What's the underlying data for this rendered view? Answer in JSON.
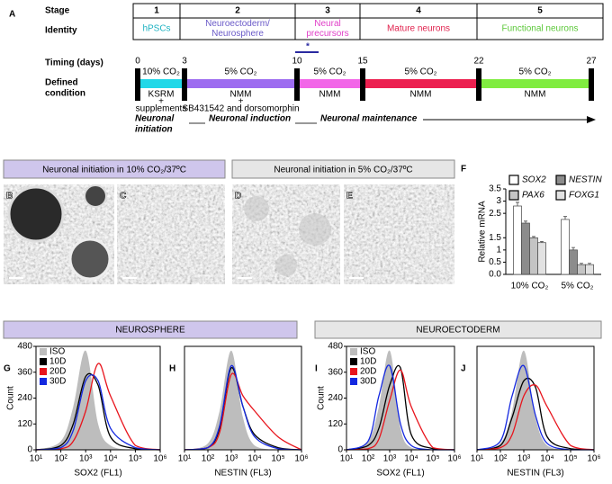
{
  "panel_a": {
    "letter": "A",
    "stage_label": "Stage",
    "identity_label": "Identity",
    "timing_label": "Timing (days)",
    "condition_label": [
      "Defined",
      "condition"
    ],
    "star": "*",
    "stages": [
      {
        "number": "1",
        "identity": [
          "hPSCs"
        ],
        "color": "#1fb3c2"
      },
      {
        "number": "2",
        "identity": [
          "Neuroectoderm/",
          "Neurosphere"
        ],
        "color": "#6a5ac8"
      },
      {
        "number": "3",
        "identity": [
          "Neural",
          "precursors"
        ],
        "color": "#e040c8"
      },
      {
        "number": "4",
        "identity": [
          "Mature neurons"
        ],
        "color": "#e0204c"
      },
      {
        "number": "5",
        "identity": [
          "Functional neurons"
        ],
        "color": "#5cc83a"
      }
    ],
    "days": [
      0,
      3,
      10,
      15,
      22,
      27
    ],
    "conditions": [
      {
        "co2": "10% CO₂",
        "medium": [
          "KSRM",
          "+",
          "supplements"
        ],
        "color": "#22d8e8"
      },
      {
        "co2": "5% CO₂",
        "medium": [
          "NMM",
          "+",
          "SB431542 and dorsomorphin"
        ],
        "color": "#9d6cf0"
      },
      {
        "co2": "5% CO₂",
        "medium": [
          "NMM"
        ],
        "color": "#f266e8"
      },
      {
        "co2": "5% CO₂",
        "medium": [
          "NMM"
        ],
        "color": "#ec2050"
      },
      {
        "co2": "5% CO₂",
        "medium": [
          "NMM"
        ],
        "color": "#80ec40"
      }
    ],
    "phases": [
      [
        "Neuronal",
        "initiation"
      ],
      [
        "Neuronal induction"
      ],
      [
        "Neuronal maintenance"
      ]
    ]
  },
  "micrographs": {
    "headers": [
      "Neuronal initiation in 10% CO₂/37ºC",
      "Neuronal initiation in 5% CO₂/37ºC"
    ],
    "letters": [
      "B",
      "C",
      "D",
      "E"
    ]
  },
  "flow_cytometry": {
    "headers": [
      "NEUROSPHERE",
      "NEUROECTODERM"
    ]
  },
  "chart_data": [
    {
      "type": "bar",
      "label": "F",
      "ylabel": "Relative mRNA",
      "categories": [
        "10% CO₂",
        "5% CO₂"
      ],
      "ylim": [
        0,
        3.5
      ],
      "yticks": [
        {
          "value": 0,
          "label": "0.0"
        },
        0.5,
        1,
        1.5,
        2.5,
        3,
        3.5
      ],
      "series": [
        {
          "name": "SOX2",
          "color": "#ffffff",
          "values": [
            2.8,
            2.25
          ],
          "errors": [
            0.15,
            0.12
          ]
        },
        {
          "name": "NESTIN",
          "color": "#8c8c8c",
          "values": [
            2.1,
            1.0
          ],
          "errors": [
            0.08,
            0.1
          ]
        },
        {
          "name": "PAX6",
          "color": "#c4c4c4",
          "values": [
            1.5,
            0.4
          ],
          "errors": [
            0.05,
            0.05
          ]
        },
        {
          "name": "FOXG1",
          "color": "#e2e2e2",
          "values": [
            1.3,
            0.4
          ],
          "errors": [
            0.05,
            0.05
          ]
        }
      ]
    },
    {
      "type": "line",
      "label": "G",
      "xlabel": "SOX2 (FL1)",
      "ylabel": "Count",
      "legend": true,
      "x": [
        1,
        2,
        2.5,
        3,
        3.5,
        4,
        5,
        6
      ],
      "xlim": [
        1,
        6
      ],
      "ylim": [
        0,
        480
      ],
      "xticks": [
        {
          "value": 1,
          "label": "10¹"
        },
        {
          "value": 2,
          "label": "10²"
        },
        {
          "value": 3,
          "label": "10³"
        },
        {
          "value": 4,
          "label": "10⁴"
        },
        {
          "value": 5,
          "label": "10⁵"
        },
        {
          "value": 6,
          "label": "10⁶"
        }
      ],
      "yticks": [
        0,
        120,
        240,
        360,
        480
      ],
      "series": [
        {
          "name": "ISO",
          "color": "#bdbdbd",
          "fill": true,
          "values": [
            0,
            40,
            200,
            460,
            120,
            20,
            0,
            0
          ]
        },
        {
          "name": "10D",
          "color": "#000000",
          "values": [
            0,
            20,
            120,
            340,
            300,
            60,
            5,
            0
          ]
        },
        {
          "name": "20D",
          "color": "#e8141c",
          "values": [
            0,
            5,
            40,
            180,
            400,
            250,
            20,
            0
          ]
        },
        {
          "name": "30D",
          "color": "#1428e0",
          "values": [
            0,
            10,
            90,
            320,
            320,
            100,
            10,
            0
          ]
        }
      ]
    },
    {
      "type": "line",
      "label": "H",
      "xlabel": "NESTIN (FL3)",
      "x": [
        1,
        2,
        2.5,
        3,
        3.5,
        4,
        5,
        6
      ],
      "xlim": [
        1,
        6
      ],
      "ylim": [
        0,
        480
      ],
      "xticks": [
        {
          "value": 1,
          "label": "10¹"
        },
        {
          "value": 2,
          "label": "10²"
        },
        {
          "value": 3,
          "label": "10³"
        },
        {
          "value": 4,
          "label": "10⁴"
        },
        {
          "value": 5,
          "label": "10⁵"
        },
        {
          "value": 6,
          "label": "10⁶"
        }
      ],
      "series": [
        {
          "name": "ISO",
          "color": "#bdbdbd",
          "fill": true,
          "values": [
            0,
            30,
            180,
            460,
            150,
            20,
            0,
            0
          ]
        },
        {
          "name": "10D",
          "color": "#000000",
          "values": [
            0,
            10,
            100,
            380,
            200,
            70,
            10,
            0
          ]
        },
        {
          "name": "20D",
          "color": "#e8141c",
          "values": [
            0,
            10,
            80,
            350,
            250,
            180,
            60,
            0
          ]
        },
        {
          "name": "30D",
          "color": "#1428e0",
          "values": [
            0,
            10,
            110,
            390,
            200,
            60,
            5,
            0
          ]
        }
      ]
    },
    {
      "type": "line",
      "label": "I",
      "xlabel": "SOX2 (FL1)",
      "ylabel": "Count",
      "legend": true,
      "x": [
        1,
        2,
        2.5,
        3,
        3.5,
        4,
        5,
        6
      ],
      "xlim": [
        1,
        6
      ],
      "ylim": [
        0,
        480
      ],
      "xticks": [
        {
          "value": 1,
          "label": "10¹"
        },
        {
          "value": 2,
          "label": "10²"
        },
        {
          "value": 3,
          "label": "10³"
        },
        {
          "value": 4,
          "label": "10⁴"
        },
        {
          "value": 5,
          "label": "10⁵"
        },
        {
          "value": 6,
          "label": "10⁶"
        }
      ],
      "yticks": [
        0,
        120,
        240,
        360,
        480
      ],
      "series": [
        {
          "name": "ISO",
          "color": "#bdbdbd",
          "fill": true,
          "values": [
            0,
            40,
            200,
            460,
            100,
            10,
            0,
            0
          ]
        },
        {
          "name": "10D",
          "color": "#000000",
          "values": [
            0,
            20,
            100,
            300,
            380,
            70,
            5,
            0
          ]
        },
        {
          "name": "20D",
          "color": "#e8141c",
          "values": [
            0,
            5,
            50,
            230,
            370,
            200,
            10,
            0
          ]
        },
        {
          "name": "30D",
          "color": "#1428e0",
          "values": [
            0,
            40,
            250,
            390,
            120,
            20,
            0,
            0
          ]
        }
      ]
    },
    {
      "type": "line",
      "label": "J",
      "xlabel": "NESTIN (FL3)",
      "x": [
        1,
        2,
        2.5,
        3,
        3.5,
        4,
        5,
        6
      ],
      "xlim": [
        1,
        6
      ],
      "ylim": [
        0,
        480
      ],
      "xticks": [
        {
          "value": 1,
          "label": "10¹"
        },
        {
          "value": 2,
          "label": "10²"
        },
        {
          "value": 3,
          "label": "10³"
        },
        {
          "value": 4,
          "label": "10⁴"
        },
        {
          "value": 5,
          "label": "10⁵"
        },
        {
          "value": 6,
          "label": "10⁶"
        }
      ],
      "series": [
        {
          "name": "ISO",
          "color": "#bdbdbd",
          "fill": true,
          "values": [
            0,
            30,
            180,
            460,
            150,
            20,
            0,
            0
          ]
        },
        {
          "name": "10D",
          "color": "#000000",
          "values": [
            0,
            20,
            150,
            320,
            290,
            60,
            5,
            0
          ]
        },
        {
          "name": "20D",
          "color": "#e8141c",
          "values": [
            0,
            10,
            70,
            250,
            300,
            200,
            20,
            0
          ]
        },
        {
          "name": "30D",
          "color": "#1428e0",
          "values": [
            0,
            40,
            250,
            390,
            160,
            30,
            0,
            0
          ]
        }
      ]
    }
  ]
}
